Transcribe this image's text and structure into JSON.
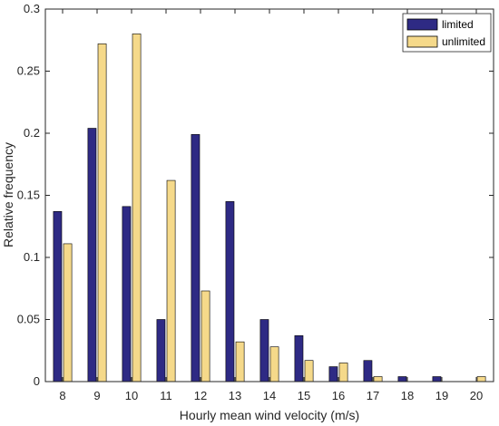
{
  "chart_data": {
    "type": "bar",
    "title": "",
    "xlabel": "Hourly mean wind velocity (m/s)",
    "ylabel": "Relative frequency",
    "categories": [
      "8",
      "9",
      "10",
      "11",
      "12",
      "13",
      "14",
      "15",
      "16",
      "17",
      "18",
      "19",
      "20"
    ],
    "ylim": [
      0,
      0.3
    ],
    "yticks": [
      "0",
      "0.05",
      "0.1",
      "0.15",
      "0.2",
      "0.25",
      "0.3"
    ],
    "grid": false,
    "legend_position": "top-right",
    "series": [
      {
        "name": "limited",
        "color": "#2e2a84",
        "values": [
          0.137,
          0.204,
          0.141,
          0.05,
          0.199,
          0.145,
          0.05,
          0.037,
          0.012,
          0.017,
          0.004,
          0.004,
          0.0
        ]
      },
      {
        "name": "unlimited",
        "color": "#f5d98a",
        "values": [
          0.111,
          0.272,
          0.28,
          0.162,
          0.073,
          0.032,
          0.028,
          0.017,
          0.015,
          0.004,
          0.0,
          0.0,
          0.004
        ]
      }
    ]
  }
}
